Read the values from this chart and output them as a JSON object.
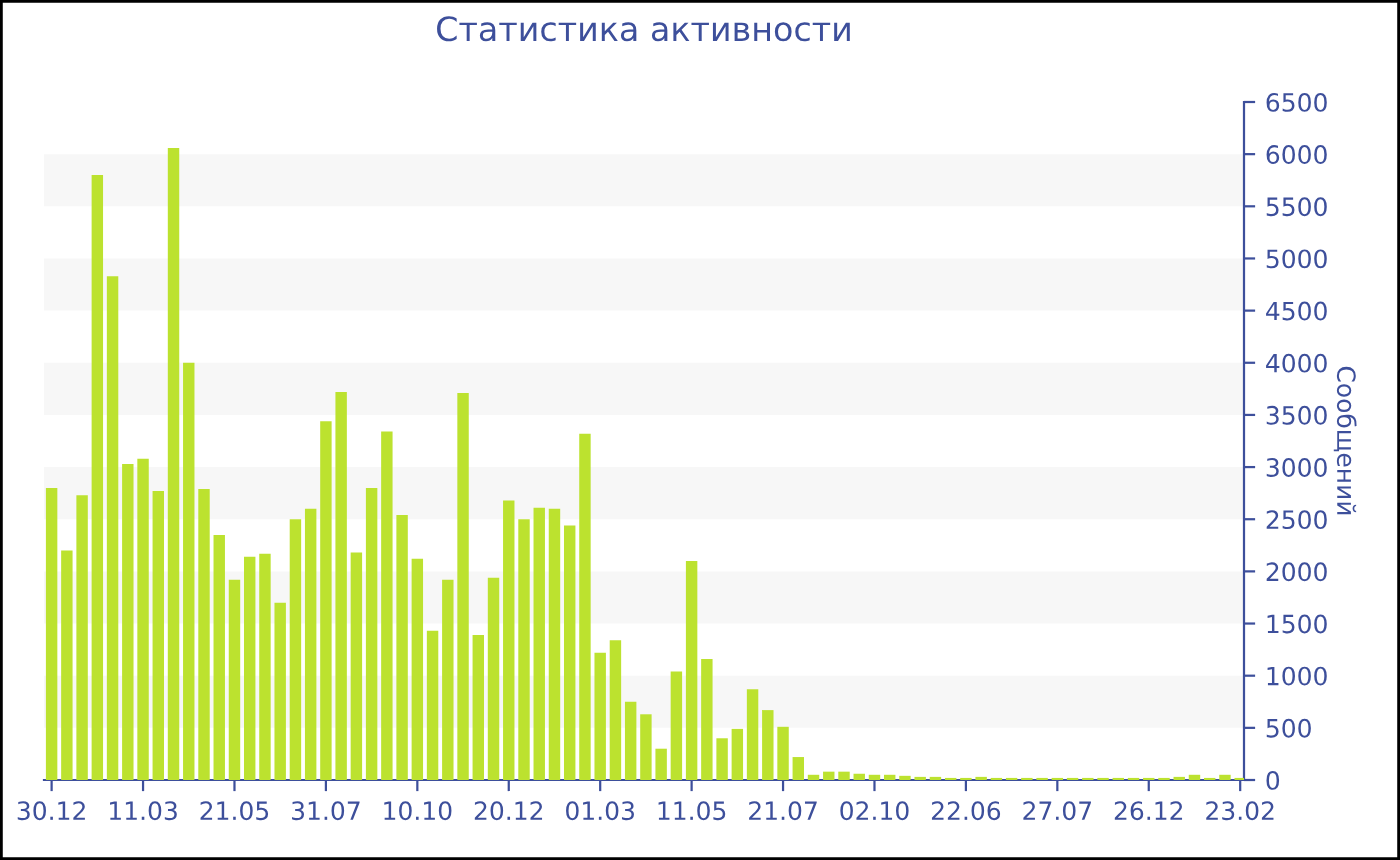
{
  "chart_data": {
    "type": "bar",
    "title": "Статистика активности",
    "ylabel": "Сообщений",
    "categories": [
      "30.12",
      null,
      null,
      null,
      null,
      null,
      "11.03",
      null,
      null,
      null,
      null,
      null,
      "21.05",
      null,
      null,
      null,
      null,
      null,
      "31.07",
      null,
      null,
      null,
      null,
      null,
      "10.10",
      null,
      null,
      null,
      null,
      null,
      "20.12",
      null,
      null,
      null,
      null,
      null,
      "01.03",
      null,
      null,
      null,
      null,
      null,
      "11.05",
      null,
      null,
      null,
      null,
      null,
      "21.07",
      null,
      null,
      null,
      null,
      null,
      "02.10",
      null,
      null,
      null,
      null,
      null,
      "22.06",
      null,
      null,
      null,
      null,
      null,
      "27.07",
      null,
      null,
      null,
      null,
      null,
      "26.12",
      null,
      null,
      null,
      null,
      null,
      "23.02"
    ],
    "values": [
      2800,
      2200,
      2730,
      5800,
      4830,
      3030,
      3080,
      2770,
      6060,
      4000,
      2790,
      2350,
      1920,
      2140,
      2170,
      1700,
      2500,
      2600,
      3440,
      3720,
      2180,
      2800,
      3340,
      2540,
      2120,
      1430,
      1920,
      3710,
      1390,
      1940,
      2680,
      2500,
      2610,
      2600,
      2440,
      3320,
      1220,
      1340,
      750,
      630,
      300,
      1040,
      2100,
      1160,
      400,
      490,
      870,
      670,
      510,
      220,
      50,
      80,
      80,
      60,
      50,
      50,
      40,
      30,
      30,
      20,
      20,
      30,
      20,
      20,
      20,
      20,
      20,
      20,
      20,
      20,
      20,
      20,
      20,
      20,
      30,
      50,
      20,
      50,
      20
    ],
    "color": "#bce22f",
    "ylim": [
      0,
      6500
    ],
    "yticks": [
      0,
      500,
      1000,
      1500,
      2000,
      2500,
      3000,
      3500,
      4000,
      4500,
      5000,
      5500,
      6000,
      6500
    ],
    "bands": [
      {
        "axis": "y",
        "from": 500,
        "to": 1000,
        "color": "#f7f7f7"
      },
      {
        "axis": "y",
        "from": 1500,
        "to": 2000,
        "color": "#f7f7f7"
      },
      {
        "axis": "y",
        "from": 2500,
        "to": 3000,
        "color": "#f7f7f7"
      },
      {
        "axis": "y",
        "from": 3500,
        "to": 4000,
        "color": "#f7f7f7"
      },
      {
        "axis": "y",
        "from": 4500,
        "to": 5000,
        "color": "#f7f7f7"
      },
      {
        "axis": "y",
        "from": 5500,
        "to": 6000,
        "color": "#f7f7f7"
      }
    ]
  }
}
